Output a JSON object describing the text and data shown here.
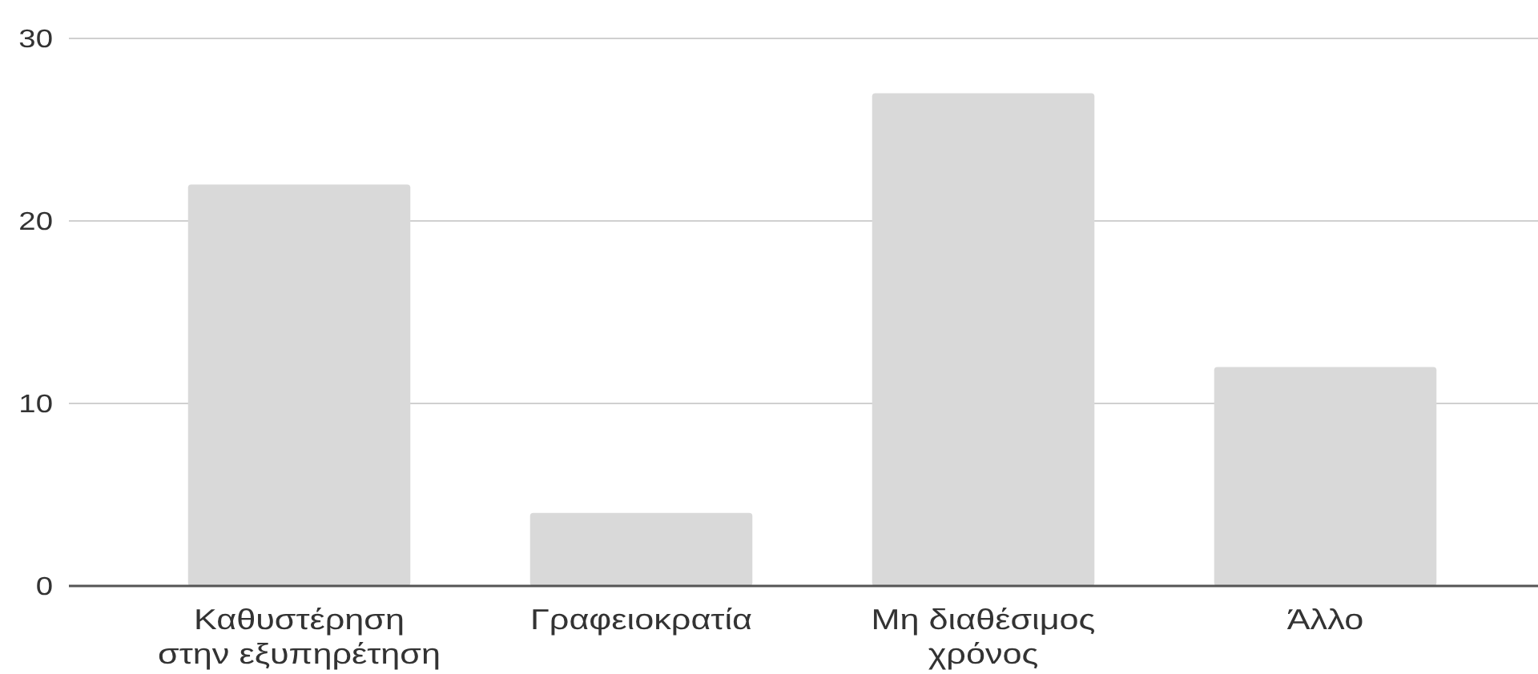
{
  "chart_data": {
    "type": "bar",
    "categories": [
      "Καθυστέρηση στην εξυπηρέτηση",
      "Γραφειοκρατία",
      "Μη διαθέσιμος χρόνος",
      "Άλλο"
    ],
    "values": [
      22,
      4,
      27,
      12
    ],
    "color": "#d9d9d9",
    "ylim": [
      0,
      30
    ],
    "yticks": [
      0,
      10,
      20,
      30
    ],
    "grid": "y"
  }
}
